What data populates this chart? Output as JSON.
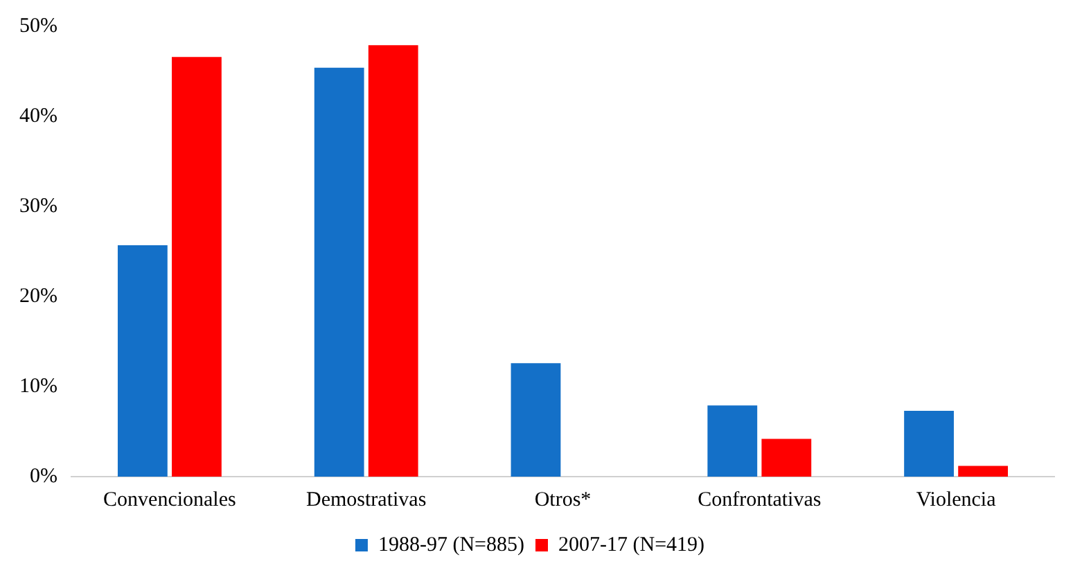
{
  "chart_data": {
    "type": "bar",
    "categories": [
      "Convencionales",
      "Demostrativas",
      "Otros*",
      "Confrontativas",
      "Violencia"
    ],
    "series": [
      {
        "name": "1988-97 (N=885)",
        "color": "#1470c8",
        "values": [
          25.7,
          45.4,
          12.6,
          7.9,
          7.3
        ]
      },
      {
        "name": "2007-17 (N=419)",
        "color": "#ff0000",
        "values": [
          46.6,
          47.9,
          null,
          4.2,
          1.2
        ]
      }
    ],
    "ylim": [
      0,
      50
    ],
    "yticks": [
      {
        "value": 0,
        "label": "0%"
      },
      {
        "value": 10,
        "label": "10%"
      },
      {
        "value": 20,
        "label": "20%"
      },
      {
        "value": 30,
        "label": "30%"
      },
      {
        "value": 40,
        "label": "40%"
      },
      {
        "value": 50,
        "label": "50%"
      }
    ],
    "grid": false,
    "legend": "bottom"
  }
}
